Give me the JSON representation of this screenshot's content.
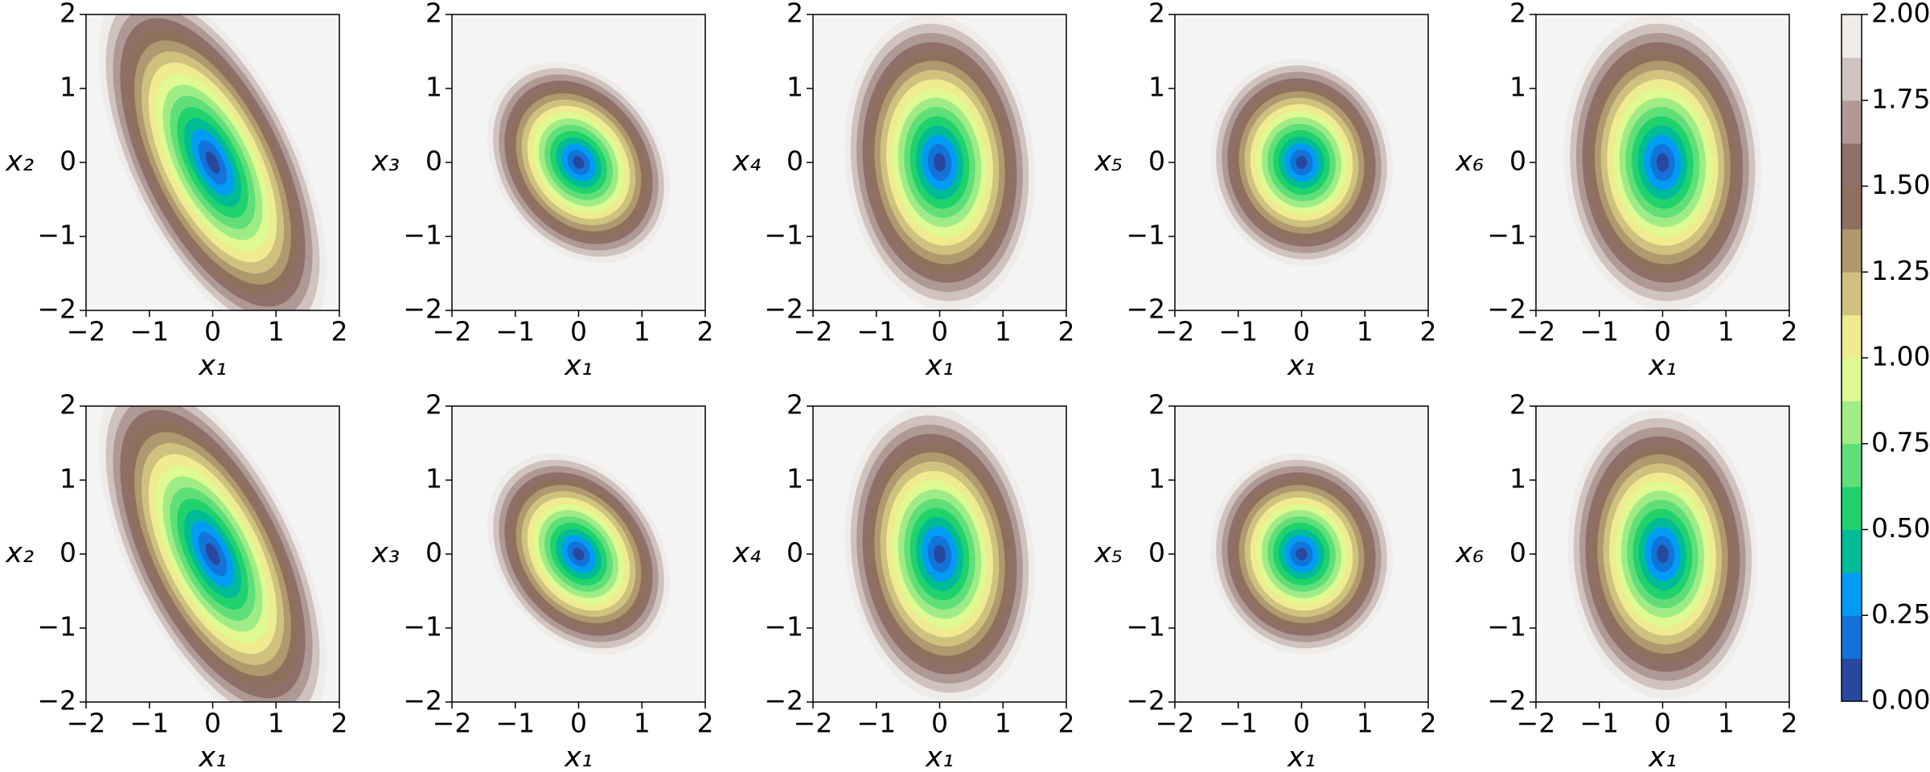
{
  "chart_data": [
    {
      "type": "contour",
      "xlabel": "x₁",
      "ylabel": "x₂",
      "xlim": [
        -2,
        2
      ],
      "ylim": [
        -2,
        2
      ],
      "xticks": [
        {
          "value": -2,
          "label": "−2"
        },
        {
          "value": -1,
          "label": "−1"
        },
        0,
        1,
        2
      ],
      "yticks": [
        {
          "value": -2,
          "label": "−2"
        },
        {
          "value": -1,
          "label": "−1"
        },
        0,
        1,
        2
      ],
      "sigma": [
        0.9,
        1.2
      ],
      "rho": -0.6,
      "facecolor": "#f4f4f4"
    },
    {
      "type": "contour",
      "xlabel": "x₁",
      "ylabel": "x₃",
      "xlim": [
        -2,
        2
      ],
      "ylim": [
        -2,
        2
      ],
      "xticks": [
        {
          "value": -2,
          "label": "−2"
        },
        {
          "value": -1,
          "label": "−1"
        },
        0,
        1,
        2
      ],
      "yticks": [
        {
          "value": -2,
          "label": "−2"
        },
        {
          "value": -1,
          "label": "−1"
        },
        0,
        1,
        2
      ],
      "sigma": [
        0.72,
        0.68
      ],
      "rho": -0.25,
      "facecolor": "#f4f4f4"
    },
    {
      "type": "contour",
      "xlabel": "x₁",
      "ylabel": "x₄",
      "xlim": [
        -2,
        2
      ],
      "ylim": [
        -2,
        2
      ],
      "xticks": [
        {
          "value": -2,
          "label": "−2"
        },
        {
          "value": -1,
          "label": "−1"
        },
        0,
        1,
        2
      ],
      "yticks": [
        {
          "value": -2,
          "label": "−2"
        },
        {
          "value": -1,
          "label": "−1"
        },
        0,
        1,
        2
      ],
      "sigma": [
        0.75,
        1.0
      ],
      "rho": -0.1,
      "facecolor": "#f4f4f4"
    },
    {
      "type": "contour",
      "xlabel": "x₁",
      "ylabel": "x₅",
      "xlim": [
        -2,
        2
      ],
      "ylim": [
        -2,
        2
      ],
      "xticks": [
        {
          "value": -2,
          "label": "−2"
        },
        {
          "value": -1,
          "label": "−1"
        },
        0,
        1,
        2
      ],
      "yticks": [
        {
          "value": -2,
          "label": "−2"
        },
        {
          "value": -1,
          "label": "−1"
        },
        0,
        1,
        2
      ],
      "sigma": [
        0.72,
        0.7
      ],
      "rho": -0.05,
      "facecolor": "#f4f4f4"
    },
    {
      "type": "contour",
      "xlabel": "x₁",
      "ylabel": "x₆",
      "xlim": [
        -2,
        2
      ],
      "ylim": [
        -2,
        2
      ],
      "xticks": [
        {
          "value": -2,
          "label": "−2"
        },
        {
          "value": -1,
          "label": "−1"
        },
        0,
        1,
        2
      ],
      "yticks": [
        {
          "value": -2,
          "label": "−2"
        },
        {
          "value": -1,
          "label": "−1"
        },
        0,
        1,
        2
      ],
      "sigma": [
        0.78,
        1.0
      ],
      "rho": -0.05,
      "facecolor": "#f4f4f4"
    },
    {
      "type": "contour",
      "xlabel": "x₁",
      "ylabel": "x₂",
      "xlim": [
        -2,
        2
      ],
      "ylim": [
        -2,
        2
      ],
      "xticks": [
        {
          "value": -2,
          "label": "−2"
        },
        {
          "value": -1,
          "label": "−1"
        },
        0,
        1,
        2
      ],
      "yticks": [
        {
          "value": -2,
          "label": "−2"
        },
        {
          "value": -1,
          "label": "−1"
        },
        0,
        1,
        2
      ],
      "sigma": [
        0.9,
        1.2
      ],
      "rho": -0.6,
      "facecolor": "#f4f4f4"
    },
    {
      "type": "contour",
      "xlabel": "x₁",
      "ylabel": "x₃",
      "xlim": [
        -2,
        2
      ],
      "ylim": [
        -2,
        2
      ],
      "xticks": [
        {
          "value": -2,
          "label": "−2"
        },
        {
          "value": -1,
          "label": "−1"
        },
        0,
        1,
        2
      ],
      "yticks": [
        {
          "value": -2,
          "label": "−2"
        },
        {
          "value": -1,
          "label": "−1"
        },
        0,
        1,
        2
      ],
      "sigma": [
        0.72,
        0.68
      ],
      "rho": -0.28,
      "facecolor": "#f4f4f4"
    },
    {
      "type": "contour",
      "xlabel": "x₁",
      "ylabel": "x₄",
      "xlim": [
        -2,
        2
      ],
      "ylim": [
        -2,
        2
      ],
      "xticks": [
        {
          "value": -2,
          "label": "−2"
        },
        {
          "value": -1,
          "label": "−1"
        },
        0,
        1,
        2
      ],
      "yticks": [
        {
          "value": -2,
          "label": "−2"
        },
        {
          "value": -1,
          "label": "−1"
        },
        0,
        1,
        2
      ],
      "sigma": [
        0.75,
        1.0
      ],
      "rho": -0.12,
      "facecolor": "#f4f4f4"
    },
    {
      "type": "contour",
      "xlabel": "x₁",
      "ylabel": "x₅",
      "xlim": [
        -2,
        2
      ],
      "ylim": [
        -2,
        2
      ],
      "xticks": [
        {
          "value": -2,
          "label": "−2"
        },
        {
          "value": -1,
          "label": "−1"
        },
        0,
        1,
        2
      ],
      "yticks": [
        {
          "value": -2,
          "label": "−2"
        },
        {
          "value": -1,
          "label": "−1"
        },
        0,
        1,
        2
      ],
      "sigma": [
        0.72,
        0.68
      ],
      "rho": -0.05,
      "facecolor": "#f4f4f4"
    },
    {
      "type": "contour",
      "xlabel": "x₁",
      "ylabel": "x₆",
      "xlim": [
        -2,
        2
      ],
      "ylim": [
        -2,
        2
      ],
      "xticks": [
        {
          "value": -2,
          "label": "−2"
        },
        {
          "value": -1,
          "label": "−1"
        },
        0,
        1,
        2
      ],
      "yticks": [
        {
          "value": -2,
          "label": "−2"
        },
        {
          "value": -1,
          "label": "−1"
        },
        0,
        1,
        2
      ],
      "sigma": [
        0.75,
        0.98
      ],
      "rho": -0.05,
      "facecolor": "#f4f4f4"
    }
  ],
  "colorbar": {
    "levels": [
      0,
      0.125,
      0.25,
      0.375,
      0.5,
      0.625,
      0.75,
      0.875,
      1,
      1.125,
      1.25,
      1.375,
      1.5,
      1.625,
      1.75,
      1.875,
      2
    ],
    "colors": [
      "#28489e",
      "#1373d9",
      "#009cf5",
      "#00bc96",
      "#20d26c",
      "#60df79",
      "#9fec86",
      "#dff993",
      "#efeb90",
      "#cfc27f",
      "#af996e",
      "#8f705d",
      "#8f7069",
      "#af9994",
      "#cfc2bf",
      "#efebe9"
    ],
    "ticks": [
      {
        "value": 0,
        "label": "0.00"
      },
      {
        "value": 0.25,
        "label": "0.25"
      },
      {
        "value": 0.5,
        "label": "0.50"
      },
      {
        "value": 0.75,
        "label": "0.75"
      },
      {
        "value": 1,
        "label": "1.00"
      },
      {
        "value": 1.25,
        "label": "1.25"
      },
      {
        "value": 1.5,
        "label": "1.50"
      },
      {
        "value": 1.75,
        "label": "1.75"
      },
      {
        "value": 2,
        "label": "2.00"
      }
    ]
  }
}
